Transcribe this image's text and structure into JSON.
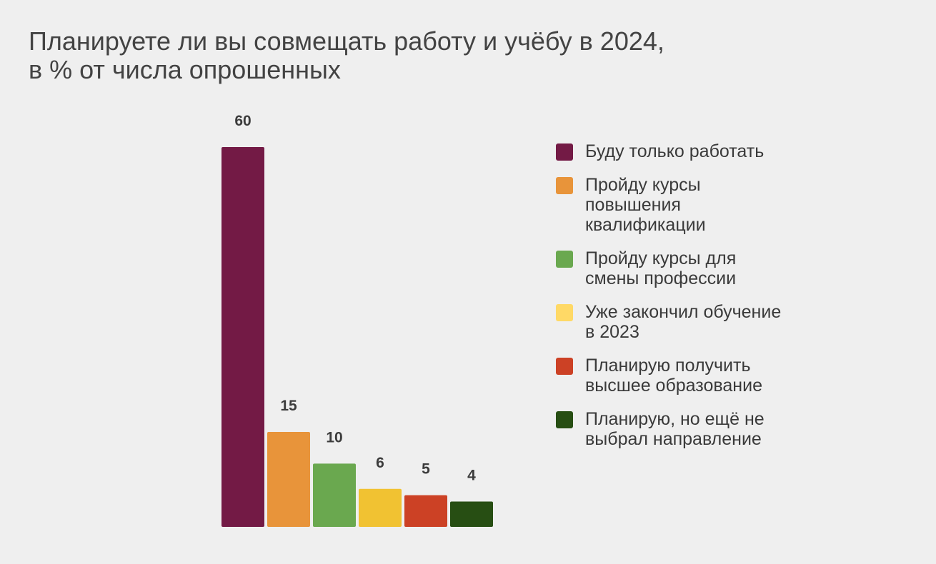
{
  "title": {
    "line1": "Планируете ли вы совмещать работу и учёбу в 2024,",
    "line2": "в % от числа опрошенных"
  },
  "chart_data": {
    "type": "bar",
    "title": "Планируете ли вы совмещать работу и учёбу в 2024, в % от числа опрошенных",
    "categories": [
      "Буду только работать",
      "Пройду курсы повышения квалификации",
      "Пройду курсы для смены профессии",
      "Уже закончил обучение в 2023",
      "Планирую получить высшее образование",
      "Планирую, но ещё не выбрал направление"
    ],
    "values": [
      60,
      15,
      10,
      6,
      5,
      4
    ],
    "colors": [
      "#731a45",
      "#e8943a",
      "#6aa84f",
      "#f1c232",
      "#cc4125",
      "#274e13"
    ],
    "data_labels": [
      "60",
      "15",
      "10",
      "6",
      "5",
      "4"
    ],
    "ylim": [
      0,
      60
    ],
    "grid": false,
    "legend_position": "right",
    "xlabel": "",
    "ylabel": ""
  },
  "legend": [
    {
      "label": "Буду только работать",
      "color": "#731a45"
    },
    {
      "label": "Пройду курсы повышения квалификации",
      "color": "#e8943a"
    },
    {
      "label": "Пройду курсы для смены профессии",
      "color": "#6aa84f"
    },
    {
      "label": "Уже закончил обучение в 2023",
      "color": "#ffd966"
    },
    {
      "label": "Планирую получить высшее образование",
      "color": "#cc4125"
    },
    {
      "label": "Планирую, но ещё не выбрал направление",
      "color": "#274e13"
    }
  ]
}
